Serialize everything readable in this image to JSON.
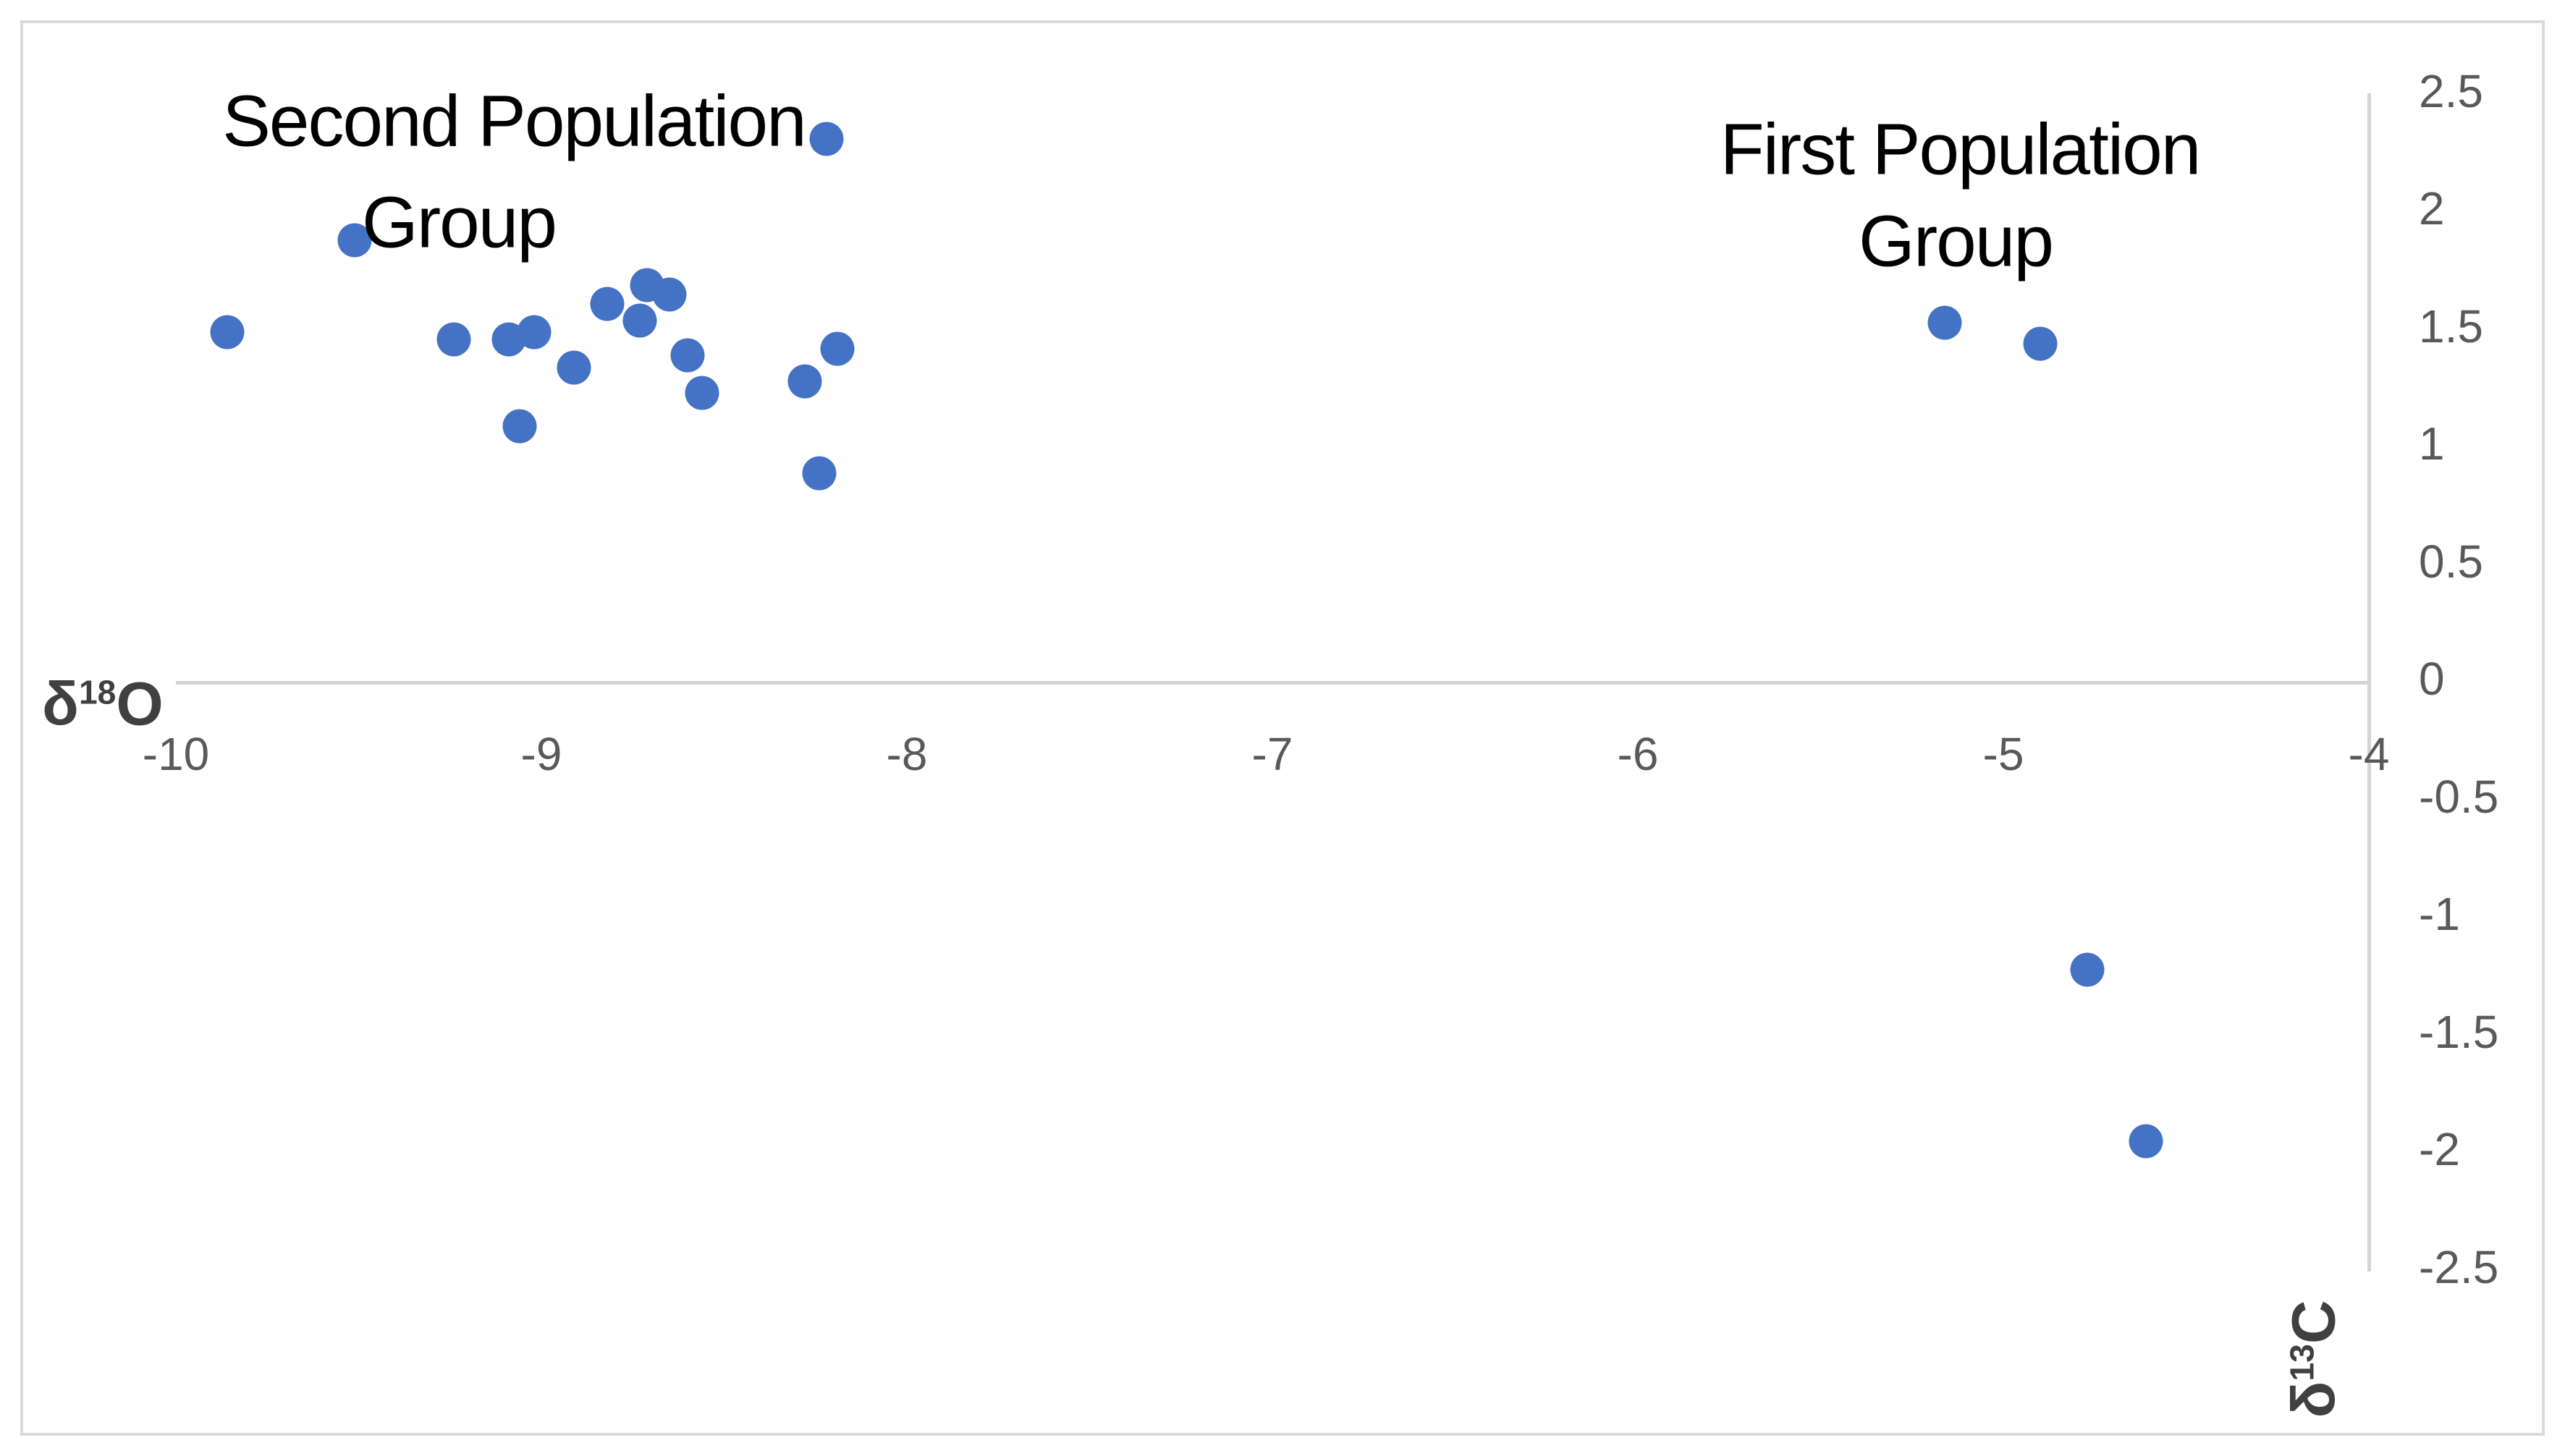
{
  "chart_data": {
    "type": "scatter",
    "title": "",
    "x_axis_label": {
      "symbol": "δ",
      "superscript": "18",
      "element": "O"
    },
    "y_axis_label": {
      "symbol": "δ",
      "superscript": "13",
      "element": "C"
    },
    "xlim": [
      -10,
      -4
    ],
    "ylim": [
      -2.5,
      2.5
    ],
    "x_ticks": [
      -10,
      -9,
      -8,
      -7,
      -6,
      -5,
      -4
    ],
    "y_ticks": [
      2.5,
      2,
      1.5,
      1,
      0.5,
      0,
      -0.5,
      -1,
      -1.5,
      -2,
      -2.5
    ],
    "grid": false,
    "legend": "none",
    "axis_position": {
      "x_axis_at_y": 0,
      "y_axis_at_x": -4
    },
    "series": [
      {
        "name": "Second Population Group",
        "points": [
          [
            -9.86,
            1.49
          ],
          [
            -9.51,
            1.88
          ],
          [
            -9.24,
            1.46
          ],
          [
            -9.09,
            1.46
          ],
          [
            -9.02,
            1.49
          ],
          [
            -9.06,
            1.09
          ],
          [
            -8.91,
            1.34
          ],
          [
            -8.82,
            1.61
          ],
          [
            -8.73,
            1.54
          ],
          [
            -8.71,
            1.69
          ],
          [
            -8.65,
            1.65
          ],
          [
            -8.6,
            1.39
          ],
          [
            -8.56,
            1.23
          ],
          [
            -8.28,
            1.28
          ],
          [
            -8.24,
            0.89
          ],
          [
            -8.22,
            2.31
          ],
          [
            -8.19,
            1.42
          ]
        ]
      },
      {
        "name": "First Population Group",
        "points": [
          [
            -5.16,
            1.53
          ],
          [
            -4.9,
            1.44
          ],
          [
            -4.77,
            -1.22
          ],
          [
            -4.61,
            -1.95
          ]
        ]
      }
    ],
    "annotations": [
      {
        "line1": "Second Population",
        "line2": "Group"
      },
      {
        "line1": "First Population",
        "line2": "Group"
      }
    ],
    "colors": {
      "marker": "#4472C4",
      "axis_line": "#D4D4D2",
      "frame_border": "#D9D9D9",
      "tick_text": "#595959",
      "axis_title_text": "#404040",
      "annotation_text": "#000000",
      "background": "#FFFFFF"
    }
  }
}
